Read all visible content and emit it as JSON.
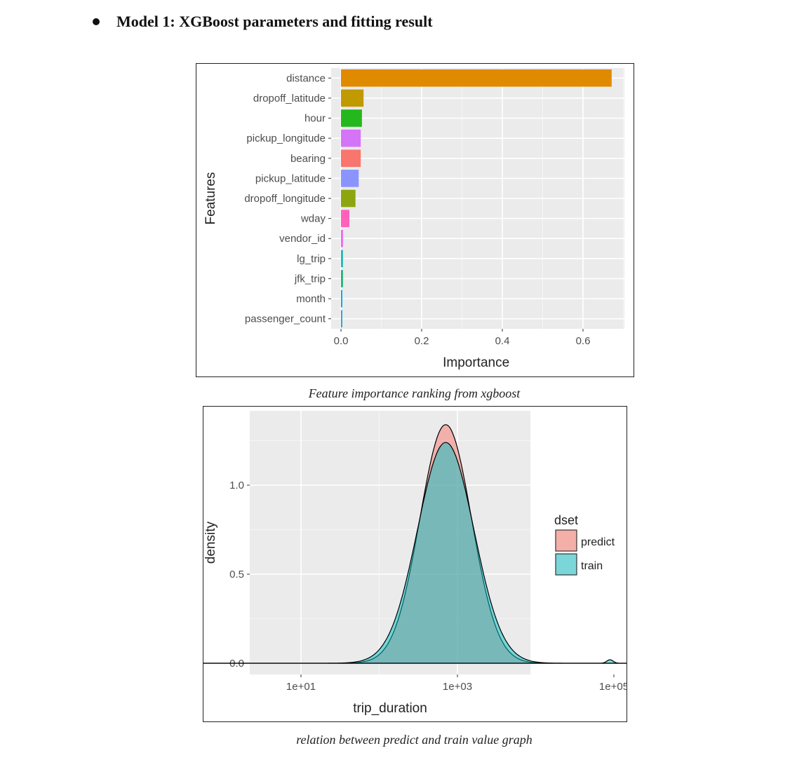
{
  "heading": "Model 1:  XGBoost parameters and fitting result",
  "figures": [
    {
      "caption": "Feature importance ranking  from xgboost"
    },
    {
      "caption": "relation between predict and train value graph"
    }
  ],
  "chart_data": [
    {
      "type": "bar",
      "orientation": "horizontal",
      "title": "",
      "xlabel": "Importance",
      "ylabel": "Features",
      "xlim": [
        0,
        0.7
      ],
      "xticks": [
        "0.0",
        "0.2",
        "0.4",
        "0.6"
      ],
      "grid": true,
      "categories": [
        "distance",
        "dropoff_latitude",
        "hour",
        "pickup_longitude",
        "bearing",
        "pickup_latitude",
        "dropoff_longitude",
        "wday",
        "vendor_id",
        "lg_trip",
        "jfk_trip",
        "month",
        "passenger_count"
      ],
      "values": [
        0.671,
        0.056,
        0.052,
        0.049,
        0.049,
        0.044,
        0.036,
        0.021,
        0.005,
        0.005,
        0.005,
        0.002,
        0.002
      ],
      "colors": [
        "#E08A00",
        "#C09A00",
        "#24B81C",
        "#D474F7",
        "#F8766D",
        "#8B93FF",
        "#8DA60F",
        "#FF62BC",
        "#E76BF3",
        "#22B8B8",
        "#24B478",
        "#00AEEF",
        "#35A2D6"
      ]
    },
    {
      "type": "area",
      "subtype": "density",
      "title": "",
      "xlabel": "trip_duration",
      "ylabel": "density",
      "xscale": "log10",
      "xticks": [
        "1e+01",
        "1e+03",
        "1e+05"
      ],
      "yticks": [
        "0.0",
        "0.5",
        "1.0"
      ],
      "ylim": [
        0,
        1.35
      ],
      "grid": true,
      "legend": {
        "title": "dset",
        "position": "right",
        "entries": [
          "predict",
          "train"
        ]
      },
      "series": [
        {
          "name": "predict",
          "color": "#F8766D",
          "peak_x_log10": 2.85,
          "peak_density": 1.34,
          "sd_log10": 0.33
        },
        {
          "name": "train",
          "color": "#00BFC4",
          "peak_x_log10": 2.85,
          "peak_density": 1.24,
          "sd_log10": 0.36,
          "note": "small bump near 1e+05 (~0.02)"
        }
      ]
    }
  ]
}
